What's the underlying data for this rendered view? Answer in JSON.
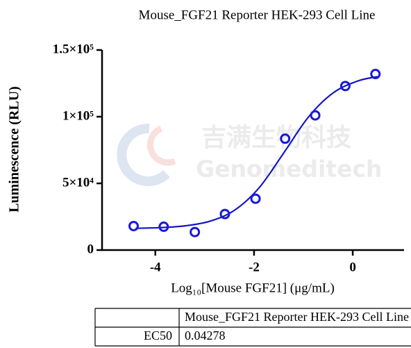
{
  "chart_data": {
    "type": "scatter",
    "title": "Mouse_FGF21 Reporter HEK-293 Cell Line",
    "x_label": "Log₁₀[Mouse FGF21] (μg/mL)",
    "y_label": "Luminescence (RLU)",
    "x": [
      -4.44,
      -3.83,
      -3.2,
      -2.59,
      -1.97,
      -1.37,
      -0.76,
      -0.15,
      0.46
    ],
    "series": [
      {
        "name": "Mouse_FGF21 Reporter HEK-293 Cell Line",
        "color": "#1a1ad6",
        "values": [
          18000,
          17500,
          13500,
          27000,
          38500,
          83500,
          101000,
          123000,
          132000
        ]
      }
    ],
    "fit": {
      "color": "#1414c8",
      "x": [
        -4.4,
        -3.9,
        -3.4,
        -2.9,
        -2.4,
        -1.9,
        -1.4,
        -0.9,
        -0.4,
        0.1,
        0.5
      ],
      "values": [
        16300,
        16820,
        18150,
        21570,
        29740,
        46570,
        72750,
        99660,
        117790,
        126750,
        130060
      ]
    },
    "xlim": [
      -5.08,
      1.04
    ],
    "xticks": [
      -4,
      -2,
      0
    ],
    "ylim": [
      0,
      150000
    ],
    "yticks": [
      0,
      {
        "value": 50000,
        "label": "5×10⁴"
      },
      {
        "value": 100000,
        "label": "1×10⁵"
      },
      {
        "value": 150000,
        "label": "1.5×10⁵"
      }
    ],
    "table": {
      "header": [
        "",
        "Mouse_FGF21 Reporter HEK-293 Cell Line"
      ],
      "rows": [
        [
          "EC50",
          "0.04278"
        ]
      ]
    }
  },
  "watermark": {
    "cn": "吉满生物科技",
    "en": "Genomeditech"
  }
}
